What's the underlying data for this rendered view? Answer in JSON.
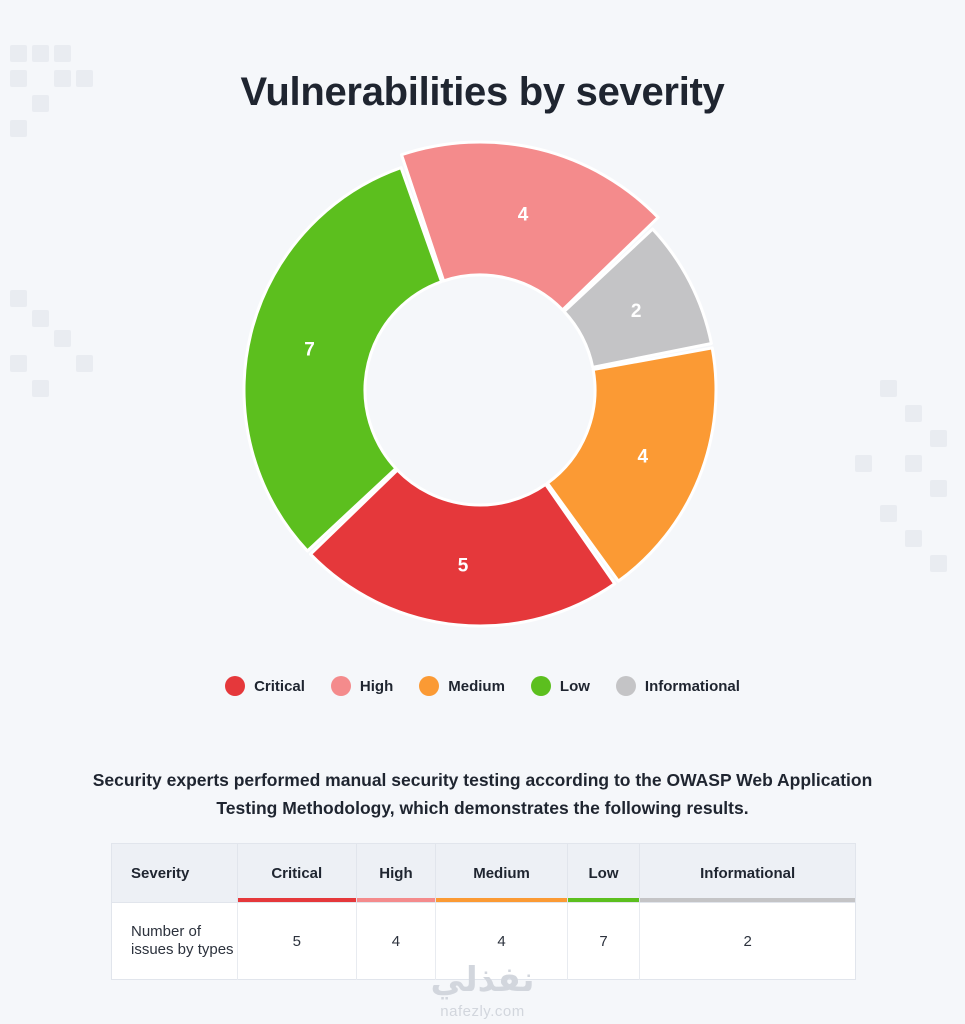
{
  "title": "Vulnerabilities by severity",
  "chart_data": {
    "type": "pie",
    "title": "Vulnerabilities by severity",
    "legend_position": "bottom",
    "categories": [
      "Critical",
      "High",
      "Medium",
      "Low",
      "Informational"
    ],
    "series": [
      {
        "values": [
          5,
          4,
          4,
          7,
          2
        ]
      }
    ],
    "slices_clockwise_from_top": [
      "High",
      "Informational",
      "Medium",
      "Critical",
      "Low"
    ],
    "colors": {
      "Critical": "#e5383b",
      "High": "#f48b8c",
      "Medium": "#fb9a34",
      "Low": "#5cbf1e",
      "Informational": "#c4c4c6"
    }
  },
  "legend": [
    {
      "label": "Critical",
      "color": "#e5383b"
    },
    {
      "label": "High",
      "color": "#f48b8c"
    },
    {
      "label": "Medium",
      "color": "#fb9a34"
    },
    {
      "label": "Low",
      "color": "#5cbf1e"
    },
    {
      "label": "Informational",
      "color": "#c4c4c6"
    }
  ],
  "description": "Security experts performed manual security testing according to the OWASP Web Application Testing Methodology, which demonstrates the following results.",
  "table": {
    "header_label": "Severity",
    "row_label": "Number of issues by types",
    "columns": [
      {
        "label": "Critical",
        "value": "5",
        "color": "#e5383b"
      },
      {
        "label": "High",
        "value": "4",
        "color": "#f48b8c"
      },
      {
        "label": "Medium",
        "value": "4",
        "color": "#fb9a34"
      },
      {
        "label": "Low",
        "value": "7",
        "color": "#5cbf1e"
      },
      {
        "label": "Informational",
        "value": "2",
        "color": "#c4c4c6"
      }
    ]
  },
  "watermark": {
    "arabic": "نفذلي",
    "latin": "nafezly.com"
  }
}
